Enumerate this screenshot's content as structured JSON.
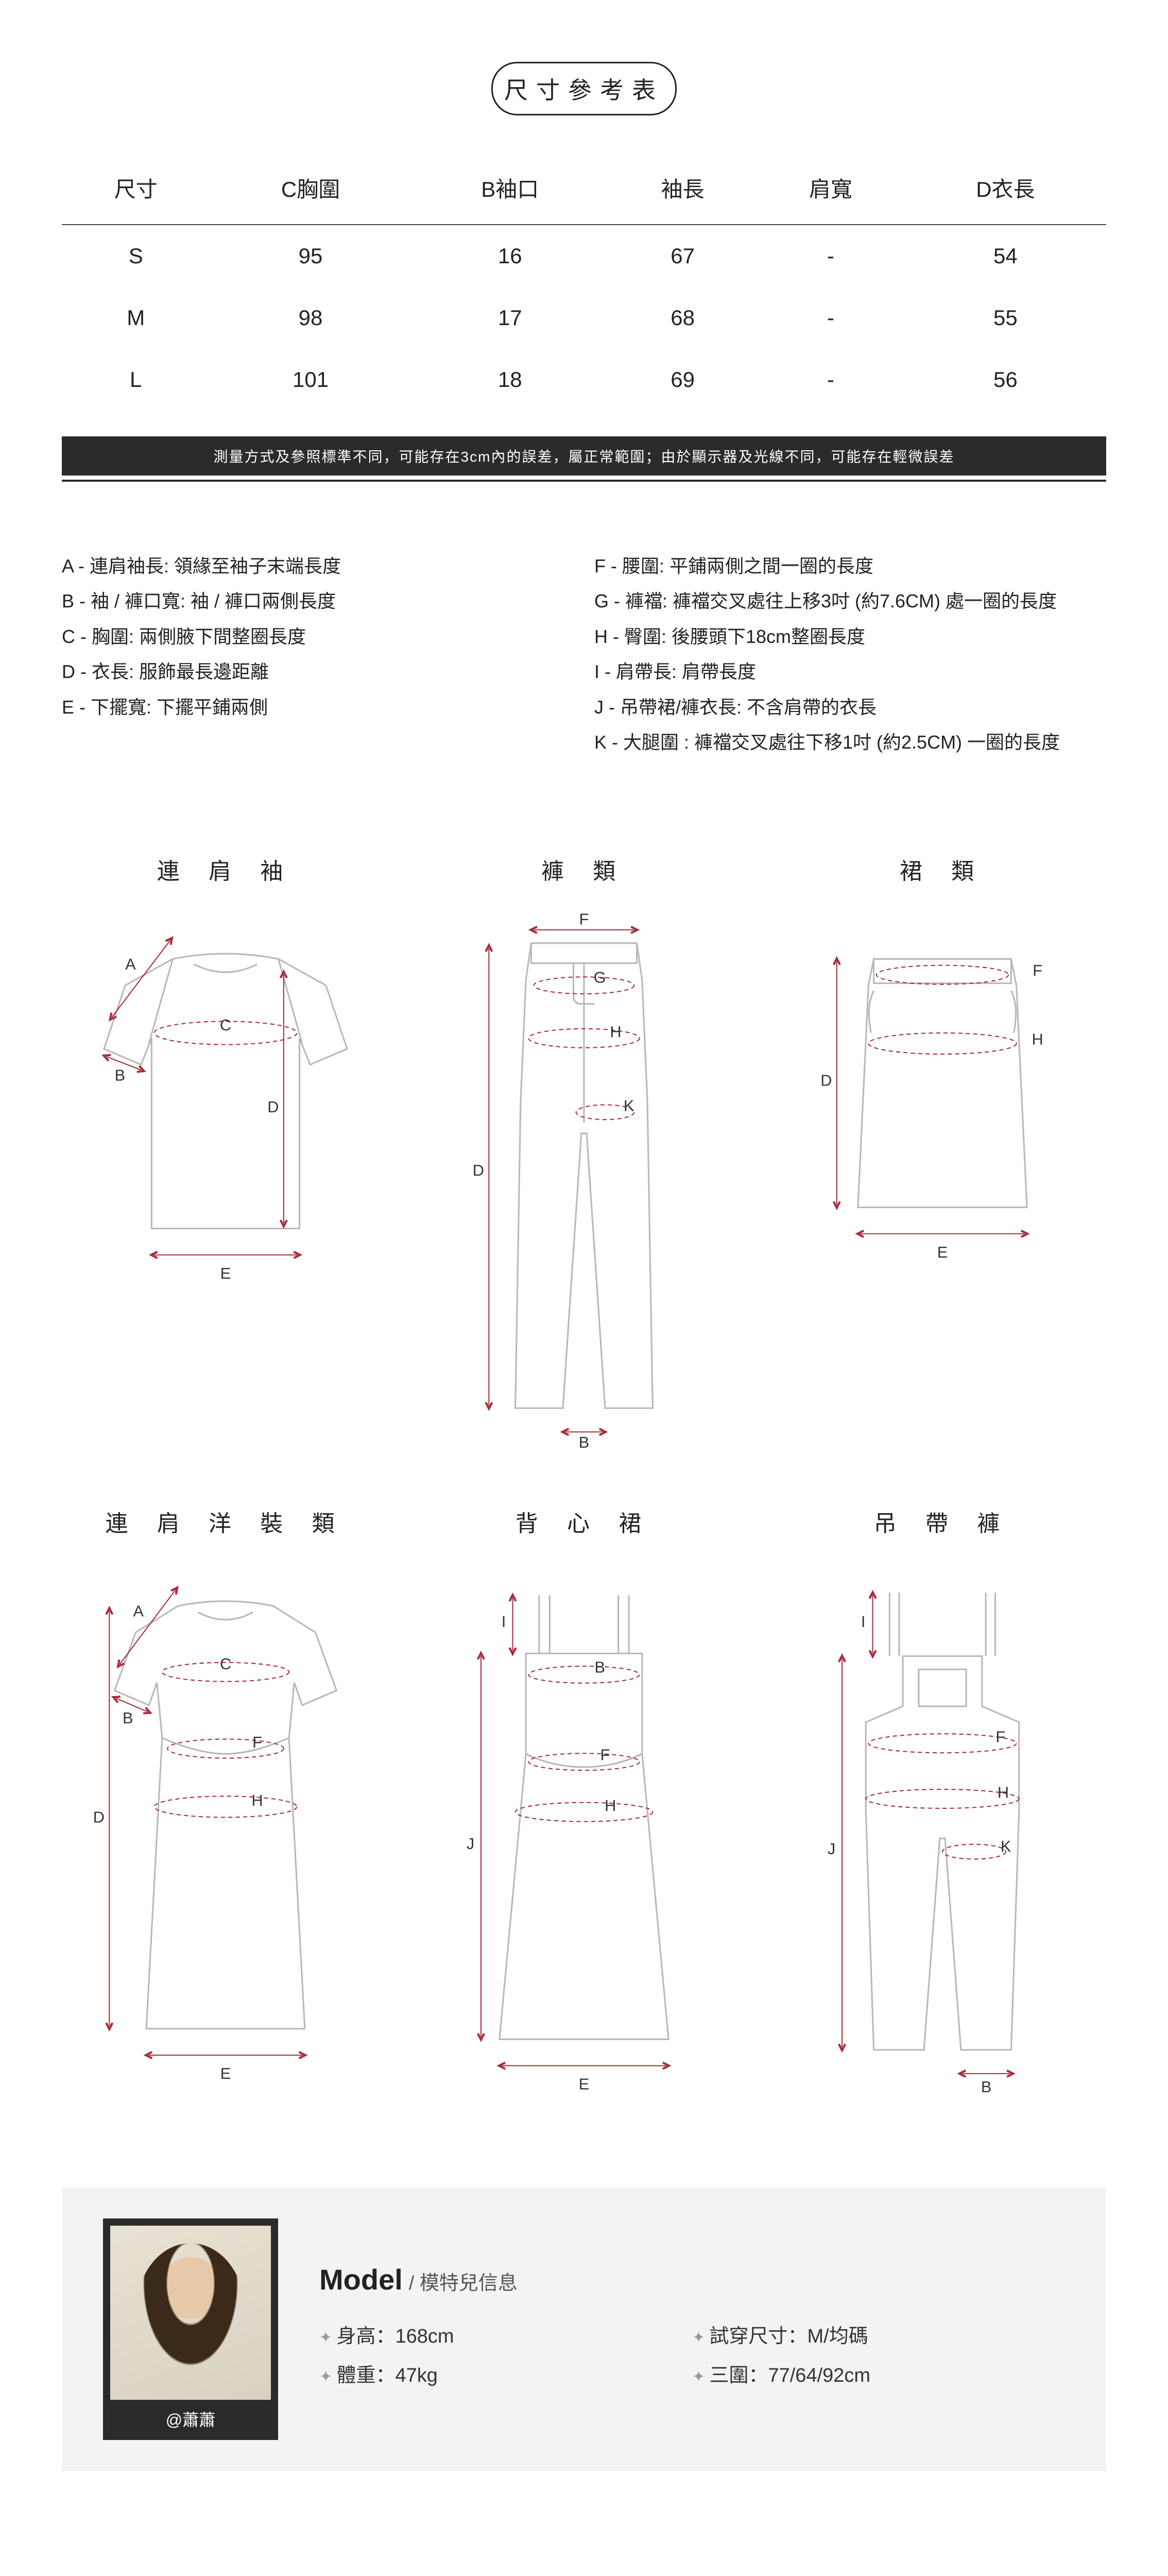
{
  "title": "尺寸參考表",
  "table": {
    "columns": [
      "尺寸",
      "C胸圍",
      "B袖口",
      "袖長",
      "肩寬",
      "D衣長"
    ],
    "rows": [
      [
        "S",
        "95",
        "16",
        "67",
        "-",
        "54"
      ],
      [
        "M",
        "98",
        "17",
        "68",
        "-",
        "55"
      ],
      [
        "L",
        "101",
        "18",
        "69",
        "-",
        "56"
      ]
    ]
  },
  "note": "測量方式及參照標準不同，可能存在3cm內的誤差，屬正常範圍；由於顯示器及光線不同，可能存在輕微誤差",
  "legend": {
    "left": [
      "A - 連肩袖長: 領緣至袖子末端長度",
      "B - 袖 / 褲口寬: 袖 / 褲口兩側長度",
      "C - 胸圍: 兩側腋下間整圈長度",
      "D - 衣長: 服飾最長邊距離",
      "E - 下擺寬: 下擺平鋪兩側"
    ],
    "right": [
      "F - 腰圍: 平鋪兩側之間一圈的長度",
      "G - 褲襠: 褲襠交叉處往上移3吋 (約7.6CM) 處一圈的長度",
      "H - 臀圍: 後腰頭下18cm整圈長度",
      "I - 肩帶長: 肩帶長度",
      "J - 吊帶裙/褲衣長: 不含肩帶的衣長",
      "K - 大腿圍 : 褲襠交叉處往下移1吋 (約2.5CM) 一圈的長度"
    ]
  },
  "diagrams": {
    "items": [
      {
        "label": "連 肩 袖",
        "kind": "raglan-tee",
        "marks": [
          "A",
          "B",
          "C",
          "D",
          "E"
        ]
      },
      {
        "label": "褲 類",
        "kind": "pants",
        "marks": [
          "B",
          "D",
          "F",
          "G",
          "H",
          "K"
        ]
      },
      {
        "label": "裙 類",
        "kind": "skirt",
        "marks": [
          "D",
          "E",
          "F",
          "H"
        ]
      },
      {
        "label": "連 肩 洋 裝 類",
        "kind": "raglan-dress",
        "marks": [
          "A",
          "B",
          "C",
          "D",
          "E",
          "F",
          "H"
        ]
      },
      {
        "label": "背 心 裙",
        "kind": "cami-dress",
        "marks": [
          "B",
          "E",
          "F",
          "H",
          "I",
          "J"
        ]
      },
      {
        "label": "吊 帶 褲",
        "kind": "overalls",
        "marks": [
          "B",
          "F",
          "H",
          "I",
          "J",
          "K"
        ]
      }
    ]
  },
  "diagram_style": {
    "outline_color": "#b8b8b8",
    "outline_width": 3,
    "measure_color": "#a72b3d",
    "measure_dash": "8 6",
    "label_font": "30px"
  },
  "model": {
    "heading": "Model",
    "heading_sub": "/ 模特兒信息",
    "name": "@蕭蕭",
    "stats": {
      "height": "身高：168cm",
      "weight": "體重：47kg",
      "try_size": "試穿尺寸：M/均碼",
      "measures": "三圍：77/64/92cm"
    }
  }
}
